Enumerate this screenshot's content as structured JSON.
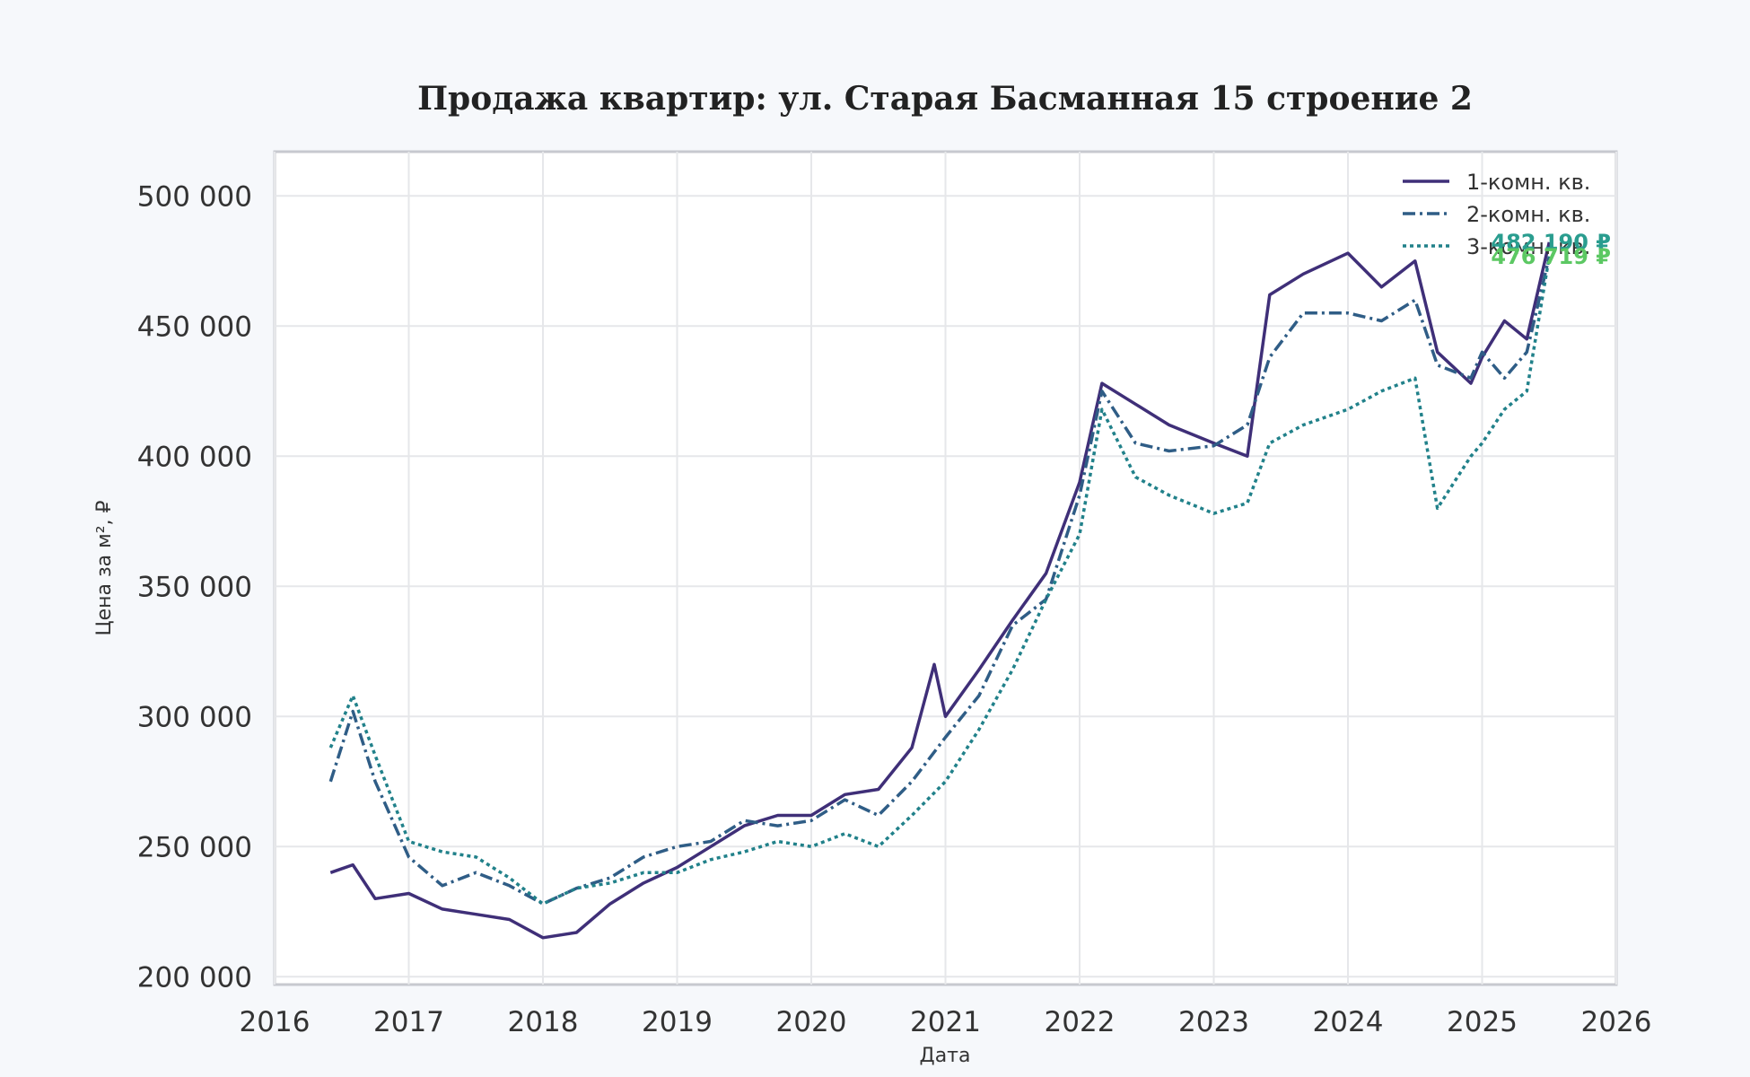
{
  "chart_data": {
    "type": "line",
    "title": "Продажа квартир: ул. Старая Басманная 15 строение 2",
    "xlabel": "Дата",
    "ylabel": "Цена за м², ₽",
    "xlim": [
      "2016-01-01",
      "2026-01-01"
    ],
    "ylim": [
      197000,
      517000
    ],
    "x_ticks": [
      "2016",
      "2017",
      "2018",
      "2019",
      "2020",
      "2021",
      "2022",
      "2023",
      "2024",
      "2025",
      "2026"
    ],
    "y_ticks": [
      200000,
      250000,
      300000,
      350000,
      400000,
      450000,
      500000
    ],
    "y_tick_labels": [
      "200 000",
      "250 000",
      "300 000",
      "350 000",
      "400 000",
      "450 000",
      "500 000"
    ],
    "grid": true,
    "legend_position": "top-right",
    "series": [
      {
        "name": "1-комн. кв.",
        "color": "#3f2f78",
        "dash": "solid",
        "points": [
          [
            "2016-06",
            240000
          ],
          [
            "2016-08",
            243000
          ],
          [
            "2016-10",
            230000
          ],
          [
            "2017-01",
            232000
          ],
          [
            "2017-04",
            226000
          ],
          [
            "2017-07",
            224000
          ],
          [
            "2017-10",
            222000
          ],
          [
            "2018-01",
            215000
          ],
          [
            "2018-04",
            217000
          ],
          [
            "2018-07",
            228000
          ],
          [
            "2018-10",
            236000
          ],
          [
            "2019-01",
            242000
          ],
          [
            "2019-04",
            250000
          ],
          [
            "2019-07",
            258000
          ],
          [
            "2019-10",
            262000
          ],
          [
            "2020-01",
            262000
          ],
          [
            "2020-04",
            270000
          ],
          [
            "2020-07",
            272000
          ],
          [
            "2020-10",
            288000
          ],
          [
            "2020-12",
            320000
          ],
          [
            "2021-01",
            300000
          ],
          [
            "2021-04",
            318000
          ],
          [
            "2021-07",
            337000
          ],
          [
            "2021-10",
            355000
          ],
          [
            "2022-01",
            390000
          ],
          [
            "2022-03",
            428000
          ],
          [
            "2022-06",
            420000
          ],
          [
            "2022-09",
            412000
          ],
          [
            "2023-01",
            405000
          ],
          [
            "2023-04",
            400000
          ],
          [
            "2023-06",
            462000
          ],
          [
            "2023-09",
            470000
          ],
          [
            "2024-01",
            478000
          ],
          [
            "2024-04",
            465000
          ],
          [
            "2024-07",
            475000
          ],
          [
            "2024-09",
            440000
          ],
          [
            "2024-12",
            428000
          ],
          [
            "2025-01",
            438000
          ],
          [
            "2025-03",
            452000
          ],
          [
            "2025-05",
            445000
          ],
          [
            "2025-07",
            482190
          ]
        ]
      },
      {
        "name": "2-комн. кв.",
        "color": "#2f5d86",
        "dash": "dashdot",
        "points": [
          [
            "2016-06",
            275000
          ],
          [
            "2016-08",
            302000
          ],
          [
            "2016-10",
            275000
          ],
          [
            "2017-01",
            246000
          ],
          [
            "2017-04",
            235000
          ],
          [
            "2017-07",
            240000
          ],
          [
            "2017-10",
            235000
          ],
          [
            "2018-01",
            228000
          ],
          [
            "2018-04",
            234000
          ],
          [
            "2018-07",
            238000
          ],
          [
            "2018-10",
            246000
          ],
          [
            "2019-01",
            250000
          ],
          [
            "2019-04",
            252000
          ],
          [
            "2019-07",
            260000
          ],
          [
            "2019-10",
            258000
          ],
          [
            "2020-01",
            260000
          ],
          [
            "2020-04",
            268000
          ],
          [
            "2020-07",
            262000
          ],
          [
            "2020-10",
            275000
          ],
          [
            "2021-01",
            292000
          ],
          [
            "2021-04",
            308000
          ],
          [
            "2021-07",
            335000
          ],
          [
            "2021-10",
            345000
          ],
          [
            "2022-01",
            385000
          ],
          [
            "2022-03",
            425000
          ],
          [
            "2022-06",
            405000
          ],
          [
            "2022-09",
            402000
          ],
          [
            "2023-01",
            404000
          ],
          [
            "2023-04",
            412000
          ],
          [
            "2023-06",
            438000
          ],
          [
            "2023-09",
            455000
          ],
          [
            "2024-01",
            455000
          ],
          [
            "2024-04",
            452000
          ],
          [
            "2024-07",
            460000
          ],
          [
            "2024-09",
            435000
          ],
          [
            "2024-12",
            430000
          ],
          [
            "2025-01",
            440000
          ],
          [
            "2025-03",
            430000
          ],
          [
            "2025-05",
            440000
          ],
          [
            "2025-07",
            476719
          ]
        ]
      },
      {
        "name": "3-комн. кв.",
        "color": "#21818a",
        "dash": "dotted",
        "points": [
          [
            "2016-06",
            288000
          ],
          [
            "2016-08",
            308000
          ],
          [
            "2016-10",
            285000
          ],
          [
            "2017-01",
            252000
          ],
          [
            "2017-04",
            248000
          ],
          [
            "2017-07",
            246000
          ],
          [
            "2017-10",
            238000
          ],
          [
            "2018-01",
            228000
          ],
          [
            "2018-04",
            234000
          ],
          [
            "2018-07",
            236000
          ],
          [
            "2018-10",
            240000
          ],
          [
            "2019-01",
            240000
          ],
          [
            "2019-04",
            245000
          ],
          [
            "2019-07",
            248000
          ],
          [
            "2019-10",
            252000
          ],
          [
            "2020-01",
            250000
          ],
          [
            "2020-04",
            255000
          ],
          [
            "2020-07",
            250000
          ],
          [
            "2020-10",
            262000
          ],
          [
            "2021-01",
            275000
          ],
          [
            "2021-04",
            295000
          ],
          [
            "2021-07",
            318000
          ],
          [
            "2021-10",
            345000
          ],
          [
            "2022-01",
            370000
          ],
          [
            "2022-03",
            418000
          ],
          [
            "2022-06",
            392000
          ],
          [
            "2022-09",
            385000
          ],
          [
            "2023-01",
            378000
          ],
          [
            "2023-04",
            382000
          ],
          [
            "2023-06",
            405000
          ],
          [
            "2023-09",
            412000
          ],
          [
            "2024-01",
            418000
          ],
          [
            "2024-04",
            425000
          ],
          [
            "2024-07",
            430000
          ],
          [
            "2024-09",
            380000
          ],
          [
            "2024-12",
            400000
          ],
          [
            "2025-01",
            405000
          ],
          [
            "2025-03",
            418000
          ],
          [
            "2025-05",
            425000
          ],
          [
            "2025-07",
            476719
          ]
        ]
      }
    ],
    "annotations": [
      {
        "text": "482 190 ₽",
        "color": "#2a9d8f",
        "value": 482190
      },
      {
        "text": "476 719 ₽",
        "color": "#5cc863",
        "value": 476719
      }
    ]
  }
}
